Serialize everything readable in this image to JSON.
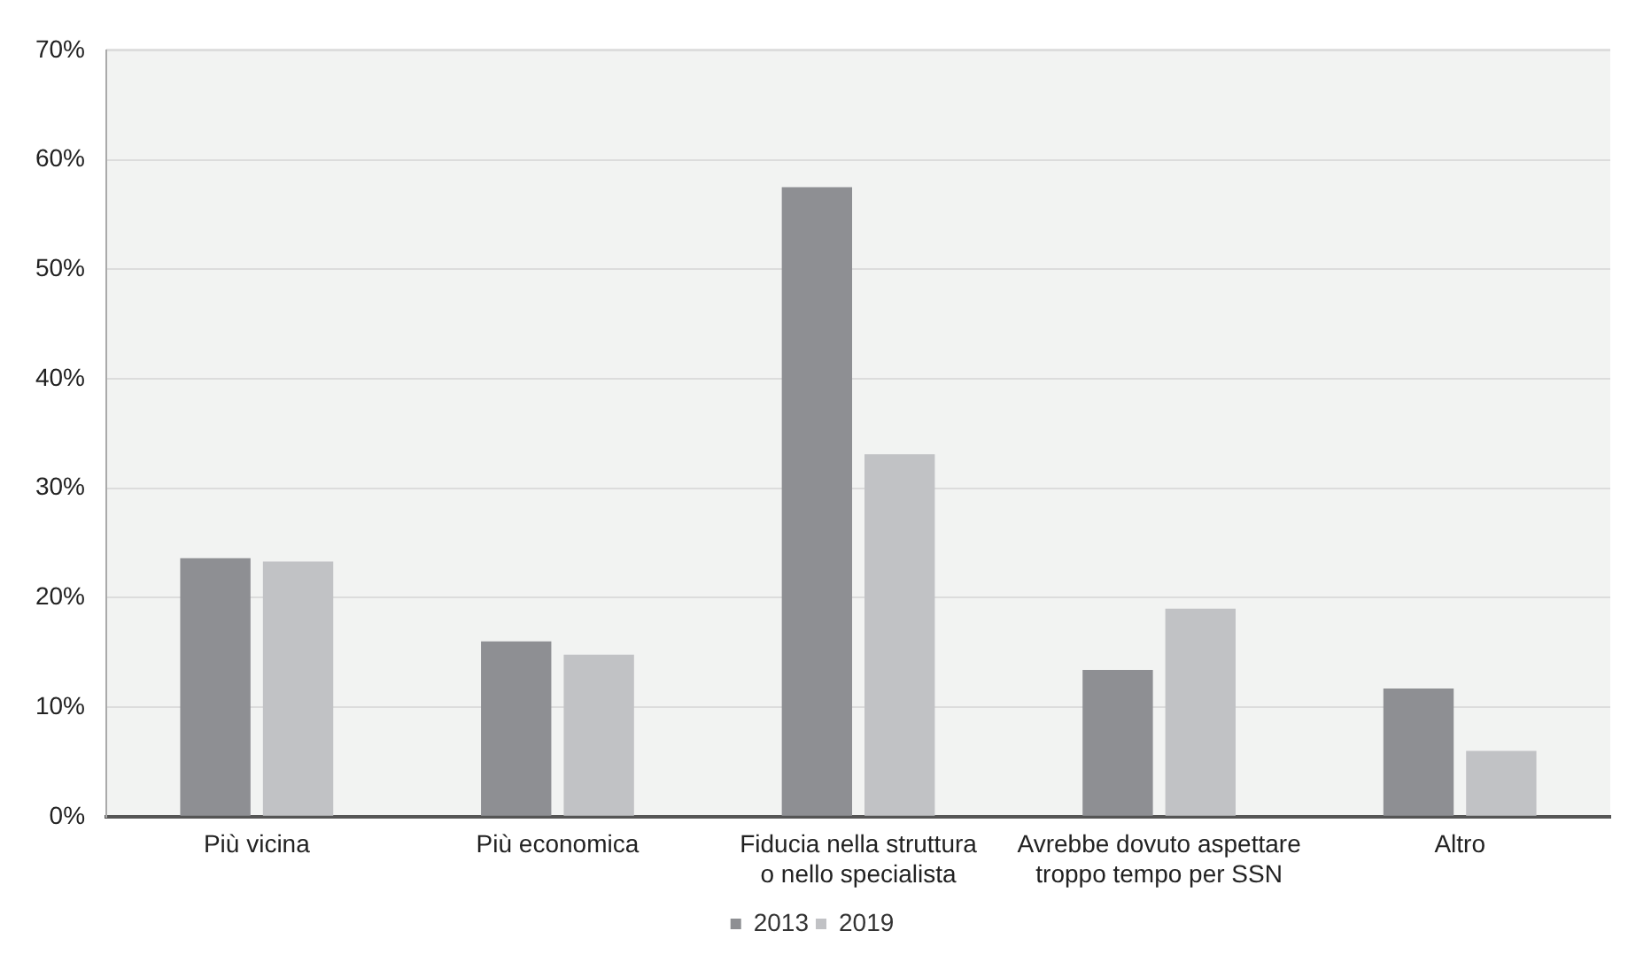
{
  "chart_data": {
    "type": "bar",
    "categories": [
      "Più vicina",
      "Più economica",
      "Fiducia nella struttura\no nello specialista",
      "Avrebbe dovuto aspettare\ntroppo tempo per SSN",
      "Altro"
    ],
    "series": [
      {
        "name": "2013",
        "color": "#8e8f93",
        "values": [
          23.6,
          16.0,
          57.5,
          13.4,
          11.7
        ]
      },
      {
        "name": "2019",
        "color": "#c1c2c5",
        "values": [
          23.3,
          14.8,
          33.1,
          19.0,
          6.0
        ]
      }
    ],
    "ylim": [
      0,
      70
    ],
    "yticks": [
      {
        "value": 0,
        "label": "0%"
      },
      {
        "value": 10,
        "label": "10%"
      },
      {
        "value": 20,
        "label": "20%"
      },
      {
        "value": 30,
        "label": "30%"
      },
      {
        "value": 40,
        "label": "40%"
      },
      {
        "value": 50,
        "label": "50%"
      },
      {
        "value": 60,
        "label": "60%"
      },
      {
        "value": 70,
        "label": "70%"
      }
    ],
    "grid": "y",
    "legend": "bottom"
  }
}
